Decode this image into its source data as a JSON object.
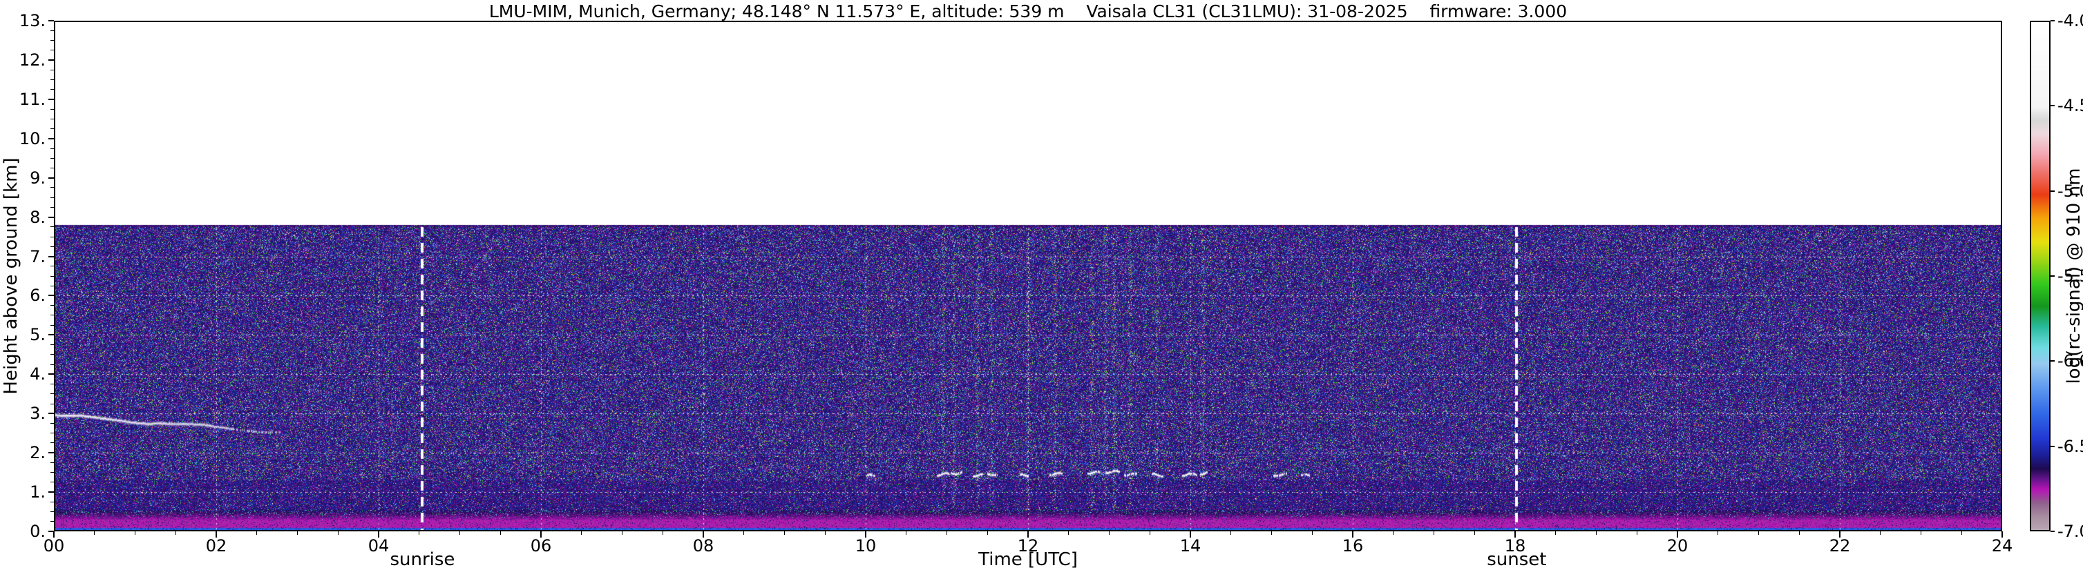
{
  "chart_data": {
    "type": "heatmap",
    "title": "LMU-MIM, Munich, Germany; 48.148° N 11.573° E, altitude: 539 m    Vaisala CL31 (CL31LMU): 31-08-2025    firmware: 3.000",
    "xlabel": "Time [UTC]",
    "ylabel": "Height above ground [km]",
    "x_range": [
      0,
      24
    ],
    "y_range": [
      0,
      13
    ],
    "x_ticks": [
      {
        "value": 0,
        "label": "00"
      },
      {
        "value": 2,
        "label": "02"
      },
      {
        "value": 4,
        "label": "04"
      },
      {
        "value": 6,
        "label": "06"
      },
      {
        "value": 8,
        "label": "08"
      },
      {
        "value": 10,
        "label": "10"
      },
      {
        "value": 12,
        "label": "12"
      },
      {
        "value": 14,
        "label": "14"
      },
      {
        "value": 16,
        "label": "16"
      },
      {
        "value": 18,
        "label": "18"
      },
      {
        "value": 20,
        "label": "20"
      },
      {
        "value": 22,
        "label": "22"
      },
      {
        "value": 24,
        "label": "24"
      }
    ],
    "y_ticks": [
      {
        "value": 0,
        "label": "0."
      },
      {
        "value": 1,
        "label": "1."
      },
      {
        "value": 2,
        "label": "2."
      },
      {
        "value": 3,
        "label": "3."
      },
      {
        "value": 4,
        "label": "4."
      },
      {
        "value": 5,
        "label": "5."
      },
      {
        "value": 6,
        "label": "6."
      },
      {
        "value": 7,
        "label": "7."
      },
      {
        "value": 8,
        "label": "8."
      },
      {
        "value": 9,
        "label": "9."
      },
      {
        "value": 10,
        "label": "10."
      },
      {
        "value": 11,
        "label": "11."
      },
      {
        "value": 12,
        "label": "12."
      },
      {
        "value": 13,
        "label": "13."
      }
    ],
    "x_minor_step": 0.5,
    "y_minor_step": 0.25,
    "grid": {
      "horizontal_km": [
        1,
        2,
        3,
        4,
        5,
        6,
        7
      ],
      "vertical_hours": [
        2,
        4,
        6,
        8,
        10,
        12,
        14,
        16,
        18,
        20,
        22
      ],
      "style": "dotted-white"
    },
    "colorbar": {
      "label": "log(rc-signal) @ 910 nm",
      "min": -7.0,
      "max": -4.0,
      "ticks": [
        {
          "value": -4.0,
          "label": "-4.0"
        },
        {
          "value": -4.5,
          "label": "-4.5"
        },
        {
          "value": -5.0,
          "label": "-5.0"
        },
        {
          "value": -5.5,
          "label": "-5.5"
        },
        {
          "value": -6.0,
          "label": "-6.0"
        },
        {
          "value": -6.5,
          "label": "-6.5"
        },
        {
          "value": -7.0,
          "label": "-7.0"
        }
      ]
    },
    "colormap_stops": [
      [
        -7.0,
        "#b9a8b4"
      ],
      [
        -6.92,
        "#a78da0"
      ],
      [
        -6.84,
        "#8f5f8e"
      ],
      [
        -6.76,
        "#b414b4"
      ],
      [
        -6.7,
        "#64148c"
      ],
      [
        -6.64,
        "#1e0a50"
      ],
      [
        -6.56,
        "#1c1e96"
      ],
      [
        -6.46,
        "#2238d2"
      ],
      [
        -6.32,
        "#2f66e6"
      ],
      [
        -6.16,
        "#5e9aee"
      ],
      [
        -6.02,
        "#96c8f0"
      ],
      [
        -5.92,
        "#6edce0"
      ],
      [
        -5.8,
        "#28b99b"
      ],
      [
        -5.68,
        "#14961e"
      ],
      [
        -5.55,
        "#32c81e"
      ],
      [
        -5.42,
        "#96d414"
      ],
      [
        -5.3,
        "#e6e010"
      ],
      [
        -5.16,
        "#f5a50a"
      ],
      [
        -5.02,
        "#eb3c14"
      ],
      [
        -4.9,
        "#ee6e64"
      ],
      [
        -4.78,
        "#f3a8b4"
      ],
      [
        -4.66,
        "#eedade"
      ],
      [
        -4.58,
        "#d7d7d7"
      ],
      [
        -4.5,
        "#f4f4f4"
      ],
      [
        -4.0,
        "#ffffff"
      ]
    ],
    "annotations": [
      {
        "label": "sunrise",
        "x_hour": 4.54,
        "style": "dashed-white"
      },
      {
        "label": "sunset",
        "x_hour": 18.02,
        "style": "dashed-white"
      }
    ],
    "features": {
      "noise_region": {
        "y_top_km": 7.8,
        "base_log": -6.62
      },
      "aerosol_layer": {
        "t_start": 0.0,
        "t_end": 2.8,
        "h_start": 2.96,
        "h_end": 2.53
      },
      "cloud_segments": [
        [
          10.02,
          10.12,
          1.42
        ],
        [
          10.88,
          11.02,
          1.45
        ],
        [
          11.05,
          11.18,
          1.5
        ],
        [
          11.32,
          11.45,
          1.44
        ],
        [
          11.5,
          11.62,
          1.47
        ],
        [
          11.9,
          12.0,
          1.42
        ],
        [
          12.26,
          12.42,
          1.47
        ],
        [
          12.72,
          12.92,
          1.5
        ],
        [
          12.95,
          13.12,
          1.52
        ],
        [
          13.18,
          13.34,
          1.46
        ],
        [
          13.52,
          13.66,
          1.44
        ],
        [
          13.9,
          14.08,
          1.45
        ],
        [
          14.12,
          14.2,
          1.48
        ],
        [
          15.02,
          15.18,
          1.44
        ],
        [
          15.36,
          15.46,
          1.42
        ]
      ],
      "streak_hours": [
        10.95,
        11.08,
        11.38,
        11.55,
        12.0,
        12.33,
        12.78,
        12.95,
        13.06,
        13.25,
        13.58,
        14.15
      ],
      "surface_bands": [
        {
          "h_top": 0.085,
          "log_value": -6.36
        },
        {
          "h_top": 0.3,
          "log_value": -6.77
        },
        {
          "h_top": 0.55,
          "log_value": -6.7
        }
      ]
    }
  }
}
